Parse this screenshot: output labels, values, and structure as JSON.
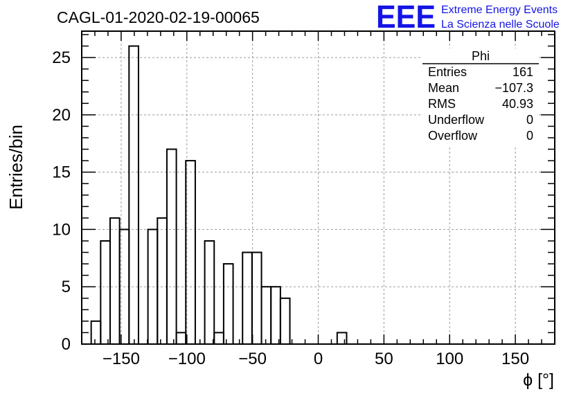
{
  "chart_data": {
    "type": "bar",
    "title": "CAGL-01-2020-02-19-00065",
    "xlabel": "ϕ [°]",
    "ylabel": "Entries/bin",
    "xlim": [
      -180,
      180
    ],
    "ylim": [
      0,
      27.3
    ],
    "grid": true,
    "bin_width": 7.2,
    "bins_start": [
      -172.8,
      -165.6,
      -158.4,
      -151.2,
      -144,
      -136.8,
      -129.6,
      -122.4,
      -115.2,
      -108,
      -100.8,
      -93.6,
      -86.4,
      -79.2,
      -72,
      -64.8,
      -57.6,
      -50.4,
      -43.2,
      -36,
      -28.8,
      -21.6,
      -14.4,
      -7.2,
      0,
      7.2,
      14.4,
      21.6
    ],
    "values": [
      2,
      9,
      11,
      10,
      26,
      0,
      10,
      11,
      17,
      1,
      16,
      0,
      9,
      1,
      7,
      0,
      8,
      8,
      5,
      5,
      4,
      0,
      0,
      0,
      0,
      0,
      1,
      0
    ],
    "x_ticks": [
      -150,
      -100,
      -50,
      0,
      50,
      100,
      150
    ],
    "y_ticks": [
      0,
      5,
      10,
      15,
      20,
      25
    ],
    "stats_box": {
      "title": "Phi",
      "rows": [
        {
          "label": "Entries",
          "value": "161"
        },
        {
          "label": "Mean",
          "value": "−107.3"
        },
        {
          "label": "RMS",
          "value": "40.93"
        },
        {
          "label": "Underflow",
          "value": "0"
        },
        {
          "label": "Overflow",
          "value": "0"
        }
      ]
    },
    "logo": {
      "mark": "EEE",
      "line1": "Extreme Energy Events",
      "line2": "La Scienza nelle Scuole",
      "color": "#1414e6"
    }
  }
}
